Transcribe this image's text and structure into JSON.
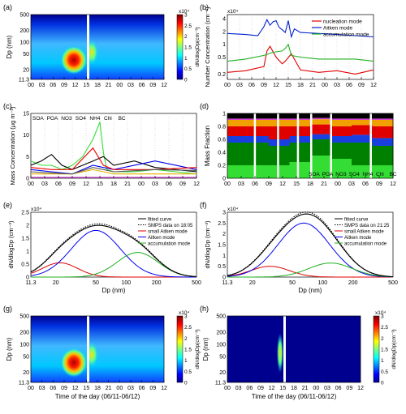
{
  "time_ticks": [
    "00",
    "03",
    "06",
    "09",
    "12",
    "15",
    "18",
    "21",
    "00",
    "03",
    "06",
    "09",
    "12"
  ],
  "time_label": "Time of the day (06/11-06/12)",
  "chart_data": [
    {
      "panel": "(a)",
      "type": "heatmap",
      "ylabel": "Dp (nm)",
      "yscale": "log",
      "ylim": [
        11.3,
        500
      ],
      "yticks": [
        "11.3",
        "20",
        "50",
        "100",
        "200",
        "500"
      ],
      "colorbar": {
        "label": "dN/dlogDp(cm⁻³)",
        "ticks": [
          "0",
          "0.5",
          "1",
          "1.5",
          "2",
          "2.5",
          "3"
        ],
        "exponent": "x10⁴"
      }
    },
    {
      "panel": "(b)",
      "type": "line",
      "ylabel": "Number Concentration (cm⁻³)",
      "exponent": "x10⁴",
      "yticks": [
        "0.2",
        "0.5",
        "1",
        "2",
        "4"
      ],
      "series": [
        {
          "name": "nucleation mode",
          "color": "#e00000",
          "x": [
            0,
            6,
            12,
            13,
            14,
            16,
            18,
            19,
            21,
            24,
            30,
            36,
            42,
            48
          ],
          "y": [
            0.22,
            0.24,
            0.3,
            0.7,
            0.9,
            0.5,
            0.35,
            0.4,
            0.6,
            0.25,
            0.22,
            0.24,
            0.2,
            0.25
          ]
        },
        {
          "name": "Aitken mode",
          "color": "#0020d0",
          "x": [
            0,
            6,
            10,
            12,
            13,
            14,
            15,
            16,
            17,
            18,
            19,
            20,
            21,
            22,
            24,
            30,
            36,
            42,
            48
          ],
          "y": [
            1.8,
            1.7,
            1.6,
            2.6,
            3.8,
            2.8,
            3.4,
            3.6,
            2.5,
            2.2,
            1.9,
            3.6,
            1.5,
            2.3,
            1.9,
            1.8,
            1.7,
            1.6,
            1.5
          ]
        },
        {
          "name": "accumulation mode",
          "color": "#20b020",
          "x": [
            0,
            6,
            12,
            15,
            18,
            19,
            20,
            21,
            24,
            30,
            36,
            42,
            48
          ],
          "y": [
            0.4,
            0.45,
            0.55,
            0.65,
            0.7,
            0.8,
            1.0,
            0.55,
            0.5,
            0.45,
            0.45,
            0.45,
            0.4
          ]
        }
      ]
    },
    {
      "panel": "(c)",
      "type": "line",
      "ylabel": "Mass Concentration (μg m⁻³)",
      "ylim": [
        0,
        15
      ],
      "yticks": [
        "0",
        "5",
        "10",
        "15"
      ],
      "series": [
        {
          "name": "SOA",
          "color": "#33dd33",
          "x": [
            0,
            3,
            6,
            9,
            12,
            15,
            18,
            20,
            21,
            22,
            24,
            30,
            36,
            42,
            48
          ],
          "y": [
            4,
            3,
            3,
            2,
            3,
            5,
            9,
            13,
            6,
            2,
            1.5,
            1.5,
            2,
            1.5,
            1
          ]
        },
        {
          "name": "POA",
          "color": "#000000",
          "x": [
            0,
            3,
            6,
            9,
            12,
            15,
            18,
            21,
            24,
            30,
            36,
            42,
            48
          ],
          "y": [
            3,
            4,
            5.5,
            3,
            2,
            3,
            4,
            5,
            3,
            4,
            2.5,
            2,
            1.5
          ]
        },
        {
          "name": "NO3",
          "color": "#0000ee",
          "x": [
            0,
            6,
            12,
            18,
            21,
            24,
            36,
            48
          ],
          "y": [
            2,
            1.5,
            1,
            3,
            2.5,
            2,
            4,
            2
          ]
        },
        {
          "name": "SO4",
          "color": "#ee0000",
          "x": [
            0,
            6,
            12,
            18,
            21,
            24,
            36,
            48
          ],
          "y": [
            2.5,
            2,
            2,
            7,
            3,
            2,
            2,
            2.5
          ]
        },
        {
          "name": "NH4",
          "color": "#e8b000",
          "x": [
            0,
            6,
            12,
            18,
            21,
            24,
            36,
            48
          ],
          "y": [
            1,
            1,
            1,
            2,
            1.5,
            1,
            1,
            1
          ]
        },
        {
          "name": "Chl",
          "color": "#cc33cc",
          "x": [
            0,
            12,
            24,
            48
          ],
          "y": [
            0.2,
            0.2,
            0.2,
            0.2
          ]
        },
        {
          "name": "BC",
          "color": "#555555",
          "x": [
            0,
            6,
            12,
            18,
            21,
            24,
            36,
            48
          ],
          "y": [
            1.5,
            1.2,
            1,
            2.5,
            2,
            1.5,
            2,
            1.8
          ]
        }
      ]
    },
    {
      "panel": "(d)",
      "type": "area",
      "ylabel": "Mass Fraction",
      "ylim": [
        0,
        1
      ],
      "yticks": [
        "0",
        "0.2",
        "0.4",
        "0.6",
        "0.8",
        "1"
      ],
      "series": [
        {
          "name": "SOA",
          "color": "#33dd33",
          "values": [
            0.2,
            0.2,
            0.2,
            0.25,
            0.35,
            0.3,
            0.2,
            0.2
          ]
        },
        {
          "name": "POA",
          "color": "#008000",
          "values": [
            0.35,
            0.35,
            0.3,
            0.3,
            0.25,
            0.25,
            0.35,
            0.3
          ]
        },
        {
          "name": "NO3",
          "color": "#1a3fe0",
          "values": [
            0.1,
            0.1,
            0.1,
            0.1,
            0.08,
            0.1,
            0.12,
            0.12
          ]
        },
        {
          "name": "SO4",
          "color": "#e00000",
          "values": [
            0.15,
            0.15,
            0.2,
            0.15,
            0.15,
            0.15,
            0.15,
            0.18
          ]
        },
        {
          "name": "NH4",
          "color": "#f0a000",
          "values": [
            0.1,
            0.1,
            0.1,
            0.1,
            0.08,
            0.1,
            0.08,
            0.1
          ]
        },
        {
          "name": "Chl",
          "color": "#d040d0",
          "values": [
            0.02,
            0.02,
            0.02,
            0.02,
            0.02,
            0.02,
            0.02,
            0.02
          ]
        },
        {
          "name": "BC",
          "color": "#000000",
          "values": [
            0.08,
            0.08,
            0.08,
            0.08,
            0.07,
            0.08,
            0.08,
            0.08
          ]
        }
      ]
    },
    {
      "panel": "(e)",
      "type": "line",
      "xlabel": "Dp (nm)",
      "ylabel": "dN/dlogDp (cm⁻³)",
      "exponent": "x10⁴",
      "xscale": "log",
      "xlim": [
        11.3,
        500
      ],
      "xticks": [
        "11.3",
        "20",
        "50",
        "100",
        "200",
        "500"
      ],
      "ylim": [
        0,
        2.5
      ],
      "yticks": [
        "0",
        "0.5",
        "1",
        "1.5",
        "2",
        "2.5"
      ],
      "legend": [
        "fitted curve",
        "SMPS data on 18:05",
        "small Aitken mode",
        "Aitken mode",
        "accumulation mode"
      ],
      "series": [
        {
          "name": "small Aitken mode",
          "color": "#e00000",
          "gmd": 22,
          "sigma": 1.5,
          "peak": 0.55
        },
        {
          "name": "Aitken mode",
          "color": "#0000ee",
          "gmd": 50,
          "sigma": 1.75,
          "peak": 1.8
        },
        {
          "name": "accumulation mode",
          "color": "#20b020",
          "gmd": 130,
          "sigma": 1.6,
          "peak": 0.95
        }
      ]
    },
    {
      "panel": "(f)",
      "type": "line",
      "xlabel": "Dp (nm)",
      "ylabel": "dN/dlogDp (cm⁻³)",
      "exponent": "x10⁴",
      "xscale": "log",
      "xlim": [
        11.3,
        500
      ],
      "xticks": [
        "11.3",
        "20",
        "50",
        "100",
        "200",
        "500"
      ],
      "ylim": [
        0,
        3
      ],
      "yticks": [
        "0",
        "0.5",
        "1",
        "1.5",
        "2",
        "2.5",
        "3"
      ],
      "legend": [
        "fitted curve",
        "SMPS data on 21:25",
        "small Aitken mode",
        "Aitken mode",
        "accumulation mode"
      ],
      "series": [
        {
          "name": "small Aitken mode",
          "color": "#e00000",
          "gmd": 30,
          "sigma": 1.55,
          "peak": 0.5
        },
        {
          "name": "Aitken mode",
          "color": "#0000ee",
          "gmd": 65,
          "sigma": 1.8,
          "peak": 2.5
        },
        {
          "name": "accumulation mode",
          "color": "#20b020",
          "gmd": 120,
          "sigma": 1.65,
          "peak": 0.65
        }
      ]
    },
    {
      "panel": "(g)",
      "type": "heatmap",
      "ylabel": "Dp (nm)",
      "yscale": "log",
      "ylim": [
        11.3,
        500
      ],
      "yticks": [
        "11.3",
        "20",
        "50",
        "100",
        "200",
        "500"
      ],
      "colorbar": {
        "label": "dN/dlogDp(cm⁻³)",
        "ticks": [
          "0",
          "0.5",
          "1",
          "1.5",
          "2",
          "2.5",
          "3"
        ],
        "exponent": "x10⁴"
      }
    },
    {
      "panel": "(h)",
      "type": "heatmap",
      "ylabel": "Dp (nm)",
      "yscale": "log",
      "ylim": [
        11.3,
        500
      ],
      "yticks": [
        "11.3",
        "20",
        "50",
        "100",
        "200",
        "500"
      ],
      "colorbar": {
        "label": "dN/dlogDp(cm⁻³)",
        "ticks": [
          "0",
          "0.5",
          "1",
          "1.5",
          "2",
          "2.5",
          "3"
        ],
        "exponent": "x10⁴"
      }
    }
  ]
}
